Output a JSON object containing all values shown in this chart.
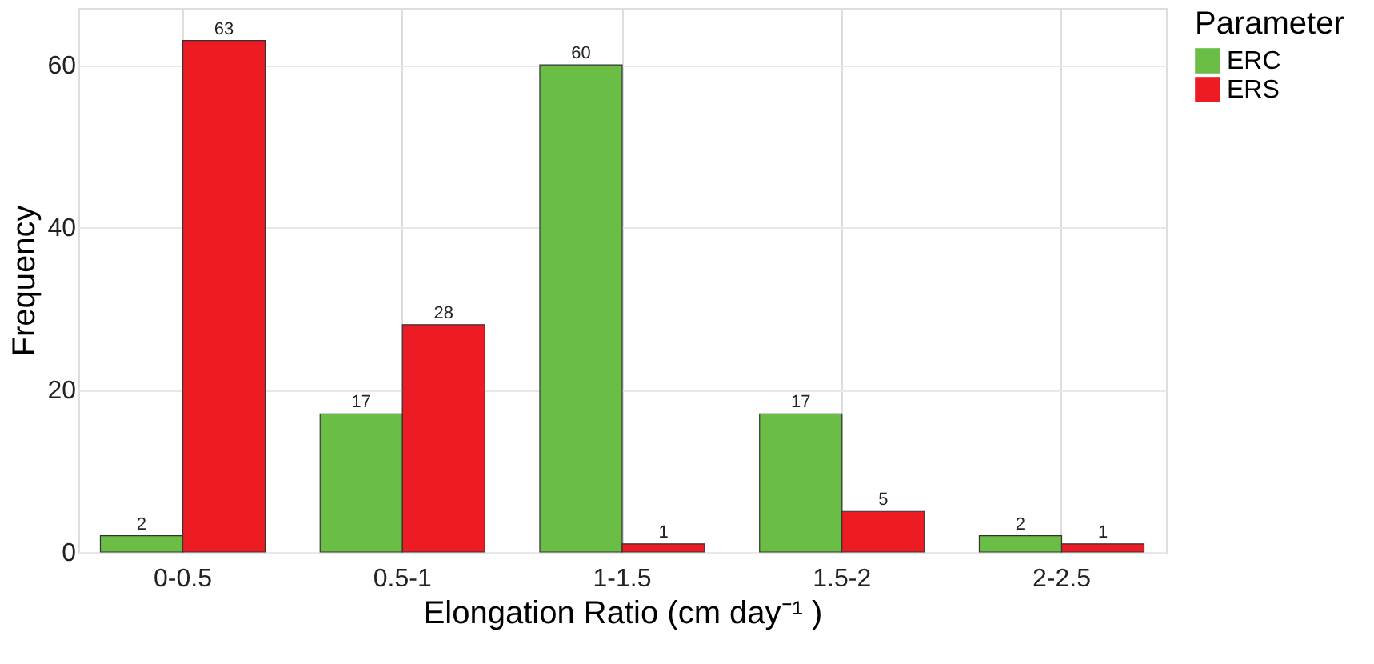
{
  "chart_data": {
    "type": "bar",
    "xlabel": "Elongation Ratio (cm day⁻¹ )",
    "ylabel": "Frequency",
    "legend_title": "Parameter",
    "categories": [
      "0-0.5",
      "0.5-1",
      "1-1.5",
      "1.5-2",
      "2-2.5"
    ],
    "series": [
      {
        "name": "ERC",
        "color": "#6abd45",
        "values": [
          2,
          17,
          60,
          17,
          2
        ]
      },
      {
        "name": "ERS",
        "color": "#ed1c24",
        "values": [
          63,
          28,
          1,
          5,
          1
        ]
      }
    ],
    "ylim": [
      0,
      67
    ],
    "yticks": [
      0,
      20,
      40,
      60
    ],
    "grid": true,
    "legend": "right",
    "data_labels": true
  }
}
